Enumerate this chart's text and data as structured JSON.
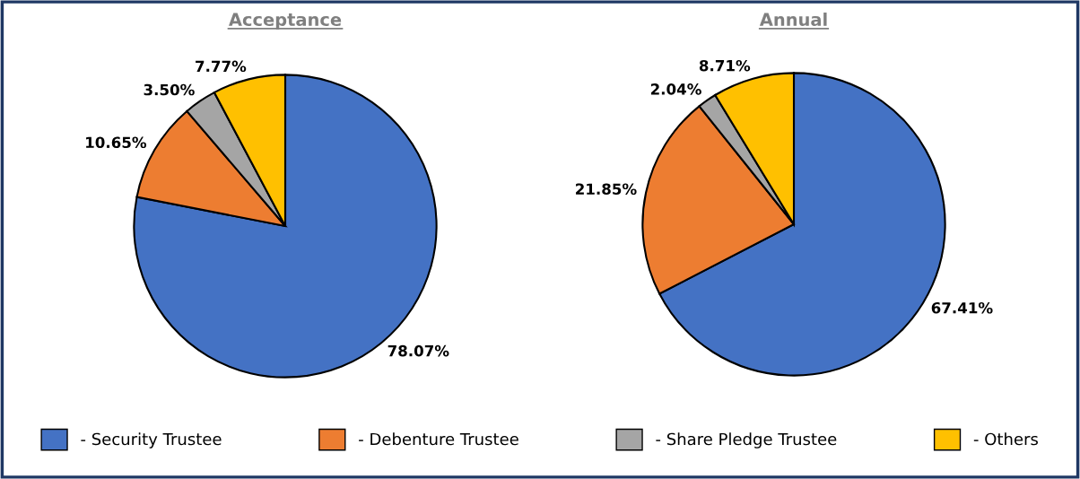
{
  "chart_data": [
    {
      "type": "pie",
      "title": "Acceptance",
      "categories": [
        "- Security Trustee",
        "- Debenture Trustee",
        "- Share Pledge Trustee",
        "- Others"
      ],
      "values": [
        78.07,
        10.65,
        3.5,
        7.77
      ],
      "colors": [
        "#4472c4",
        "#ed7d31",
        "#a5a5a5",
        "#ffc000"
      ],
      "value_labels": [
        "78.07%",
        "10.65%",
        "3.50%",
        "7.77%"
      ],
      "legend": "bottom"
    },
    {
      "type": "pie",
      "title": "Annual",
      "categories": [
        null,
        null,
        null,
        null
      ],
      "values": [
        67.41,
        21.85,
        2.04,
        8.71
      ],
      "colors": [
        "#4472c4",
        "#ed7d31",
        "#a5a5a5",
        "#ffc000"
      ],
      "value_labels": [
        "67.41%",
        "21.85%",
        "2.04%",
        "8.71%"
      ]
    }
  ]
}
